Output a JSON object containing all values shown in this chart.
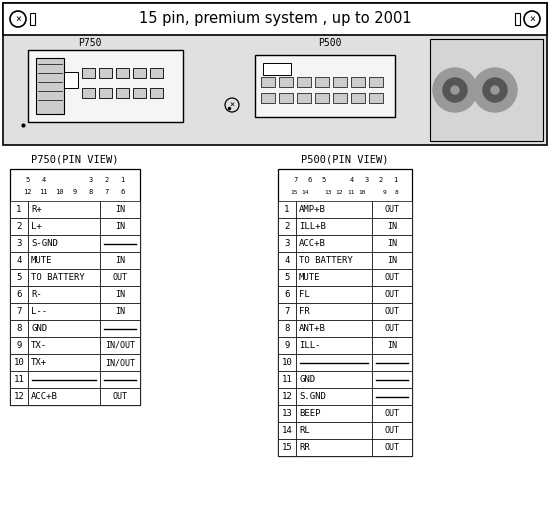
{
  "title": "15 pin, premium system , up to 2001",
  "p750_label": "P750",
  "p500_label": "P500",
  "p750_pin_view_label": "P750(PIN VIEW)",
  "p500_pin_view_label": "P500(PIN VIEW)",
  "p750_pins": [
    [
      1,
      "R+",
      "IN"
    ],
    [
      2,
      "L+",
      "IN"
    ],
    [
      3,
      "S-GND",
      "---"
    ],
    [
      4,
      "MUTE",
      "IN"
    ],
    [
      5,
      "TO BATTERY",
      "OUT"
    ],
    [
      6,
      "R-",
      "IN"
    ],
    [
      7,
      "L--",
      "IN"
    ],
    [
      8,
      "GND",
      "---"
    ],
    [
      9,
      "TX-",
      "IN/OUT"
    ],
    [
      10,
      "TX+",
      "IN/OUT"
    ],
    [
      11,
      "---",
      "---"
    ],
    [
      12,
      "ACC+B",
      "OUT"
    ]
  ],
  "p500_pins": [
    [
      1,
      "AMP+B",
      "OUT"
    ],
    [
      2,
      "ILL+B",
      "IN"
    ],
    [
      3,
      "ACC+B",
      "IN"
    ],
    [
      4,
      "TO BATTERY",
      "IN"
    ],
    [
      5,
      "MUTE",
      "OUT"
    ],
    [
      6,
      "FL",
      "OUT"
    ],
    [
      7,
      "FR",
      "OUT"
    ],
    [
      8,
      "ANT+B",
      "OUT"
    ],
    [
      9,
      "ILL-",
      "IN"
    ],
    [
      10,
      "---",
      "---"
    ],
    [
      11,
      "GND",
      "---"
    ],
    [
      12,
      "S.GND",
      "---"
    ],
    [
      13,
      "BEEP",
      "OUT"
    ],
    [
      14,
      "RL",
      "OUT"
    ],
    [
      15,
      "RR",
      "OUT"
    ]
  ],
  "p750_row1": [
    "5",
    "4",
    "",
    "",
    "3",
    "2",
    "1"
  ],
  "p750_row2": [
    "12",
    "11",
    "10",
    "9",
    "8",
    "7",
    "6"
  ],
  "p500_row1": [
    "7",
    "6",
    "5",
    "",
    "4",
    "3",
    "2",
    "1"
  ],
  "p500_row2": [
    "15",
    "14",
    "",
    "13",
    "12",
    "11",
    "10",
    "",
    "9",
    "8"
  ]
}
